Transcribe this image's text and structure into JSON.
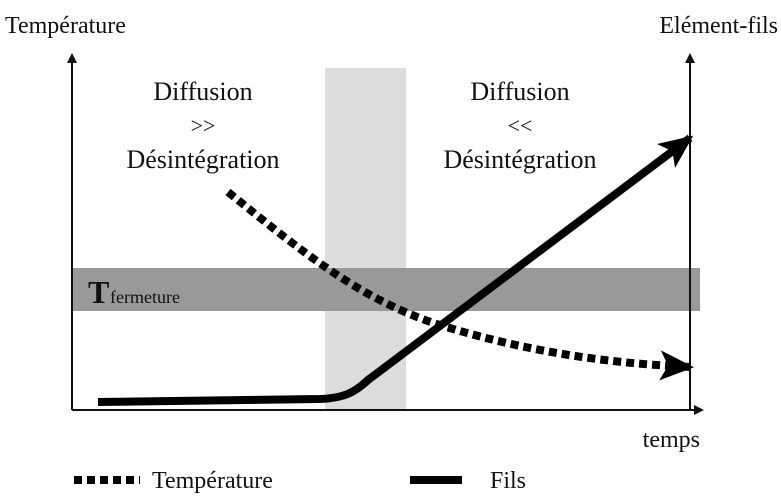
{
  "axes": {
    "left_label": "Température",
    "right_label": "Elément-fils",
    "bottom_label": "temps"
  },
  "regions": {
    "left": {
      "line1": "Diffusion",
      "line2": ">>",
      "line3": "Désintégration"
    },
    "right": {
      "line1": "Diffusion",
      "line2": "<<",
      "line3": "Désintégration"
    }
  },
  "band": {
    "symbol": "T",
    "subscript": "fermeture"
  },
  "legend": {
    "dotted": "Température",
    "solid": "Fils"
  }
}
